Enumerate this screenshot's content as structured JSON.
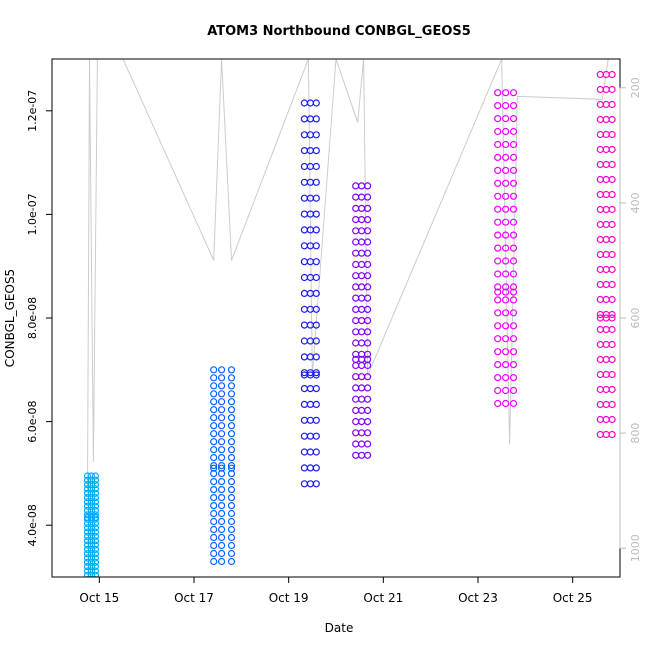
{
  "chart_data": {
    "type": "scatter",
    "title": "ATOM3 Northbound CONBGL_GEOS5",
    "xlabel": "Date",
    "ylabel": "CONBGL_GEOS5",
    "xlim": [
      "2016-10-14",
      "2016-10-26"
    ],
    "ylim": [
      3e-08,
      1.3e-07
    ],
    "y2lim": [
      1050,
      150
    ],
    "x_ticks": [
      {
        "date": "2016-10-15",
        "label": "Oct 15"
      },
      {
        "date": "2016-10-17",
        "label": "Oct 17"
      },
      {
        "date": "2016-10-19",
        "label": "Oct 19"
      },
      {
        "date": "2016-10-21",
        "label": "Oct 21"
      },
      {
        "date": "2016-10-23",
        "label": "Oct 23"
      },
      {
        "date": "2016-10-25",
        "label": "Oct 25"
      }
    ],
    "y_ticks": [
      {
        "value": 4e-08,
        "label": "4.0e-08"
      },
      {
        "value": 6e-08,
        "label": "6.0e-08"
      },
      {
        "value": 8e-08,
        "label": "8.0e-08"
      },
      {
        "value": 1e-07,
        "label": "1.0e-07"
      },
      {
        "value": 1.2e-07,
        "label": "1.2e-07"
      }
    ],
    "y2_ticks": [
      {
        "value": 200,
        "label": "200"
      },
      {
        "value": 400,
        "label": "400"
      },
      {
        "value": 600,
        "label": "600"
      },
      {
        "value": 800,
        "label": "800"
      },
      {
        "value": 1000,
        "label": "1000"
      }
    ],
    "series": [
      {
        "color": "#00a9f5",
        "x": [
          "2016-10-14T18:00",
          "2016-10-14T20:00",
          "2016-10-14T22:00"
        ],
        "ymin": 2.95e-08,
        "ymax": 4.95e-08,
        "ymid": 4.15e-08
      },
      {
        "color": "#0066ff",
        "x": [
          "2016-10-17T10:00",
          "2016-10-17T14:00",
          "2016-10-17T19:00"
        ],
        "ymin": 3.3e-08,
        "ymax": 7e-08,
        "ymid": 5.1e-08
      },
      {
        "color": "#1a1aff",
        "x": [
          "2016-10-19T08:00",
          "2016-10-19T11:00",
          "2016-10-19T14:00"
        ],
        "ymin": 4.8e-08,
        "ymax": 1.215e-07,
        "ymid": 6.9e-08
      },
      {
        "color": "#8000ff",
        "x": [
          "2016-10-20T10:00",
          "2016-10-20T13:00",
          "2016-10-20T16:00"
        ],
        "ymin": 5.35e-08,
        "ymax": 1.055e-07,
        "ymid": 7.2e-08
      },
      {
        "color": "#ee00ff",
        "x": [
          "2016-10-23T10:00",
          "2016-10-23T14:00",
          "2016-10-23T18:00"
        ],
        "ymin": 6.35e-08,
        "ymax": 1.235e-07,
        "ymid": 8.5e-08
      },
      {
        "color": "#ff00cc",
        "x": [
          "2016-10-25T14:00",
          "2016-10-25T17:00",
          "2016-10-25T20:00"
        ],
        "ymin": 5.75e-08,
        "ymax": 1.27e-07,
        "ymid": 8e-08
      }
    ],
    "altitude_trace": {
      "color": "#cccccc",
      "points": [
        {
          "x": "2016-10-14T18:00",
          "alt": 900
        },
        {
          "x": "2016-10-14T19:00",
          "alt": 150
        },
        {
          "x": "2016-10-14T21:00",
          "alt": 850
        },
        {
          "x": "2016-10-14T23:00",
          "alt": 150
        },
        {
          "x": "2016-10-15T12:00",
          "alt": 150
        },
        {
          "x": "2016-10-17T10:00",
          "alt": 500
        },
        {
          "x": "2016-10-17T14:00",
          "alt": 150
        },
        {
          "x": "2016-10-17T19:00",
          "alt": 500
        },
        {
          "x": "2016-10-19T10:00",
          "alt": 150
        },
        {
          "x": "2016-10-19T12:00",
          "alt": 700
        },
        {
          "x": "2016-10-20T00:00",
          "alt": 150
        },
        {
          "x": "2016-10-20T11:00",
          "alt": 260
        },
        {
          "x": "2016-10-20T14:00",
          "alt": 150
        },
        {
          "x": "2016-10-20T16:00",
          "alt": 700
        },
        {
          "x": "2016-10-23T12:00",
          "alt": 150
        },
        {
          "x": "2016-10-23T16:00",
          "alt": 820
        },
        {
          "x": "2016-10-23T20:00",
          "alt": 215
        },
        {
          "x": "2016-10-25T15:00",
          "alt": 220
        },
        {
          "x": "2016-10-25T18:00",
          "alt": 150
        }
      ]
    },
    "grid": false,
    "legend": "none"
  }
}
